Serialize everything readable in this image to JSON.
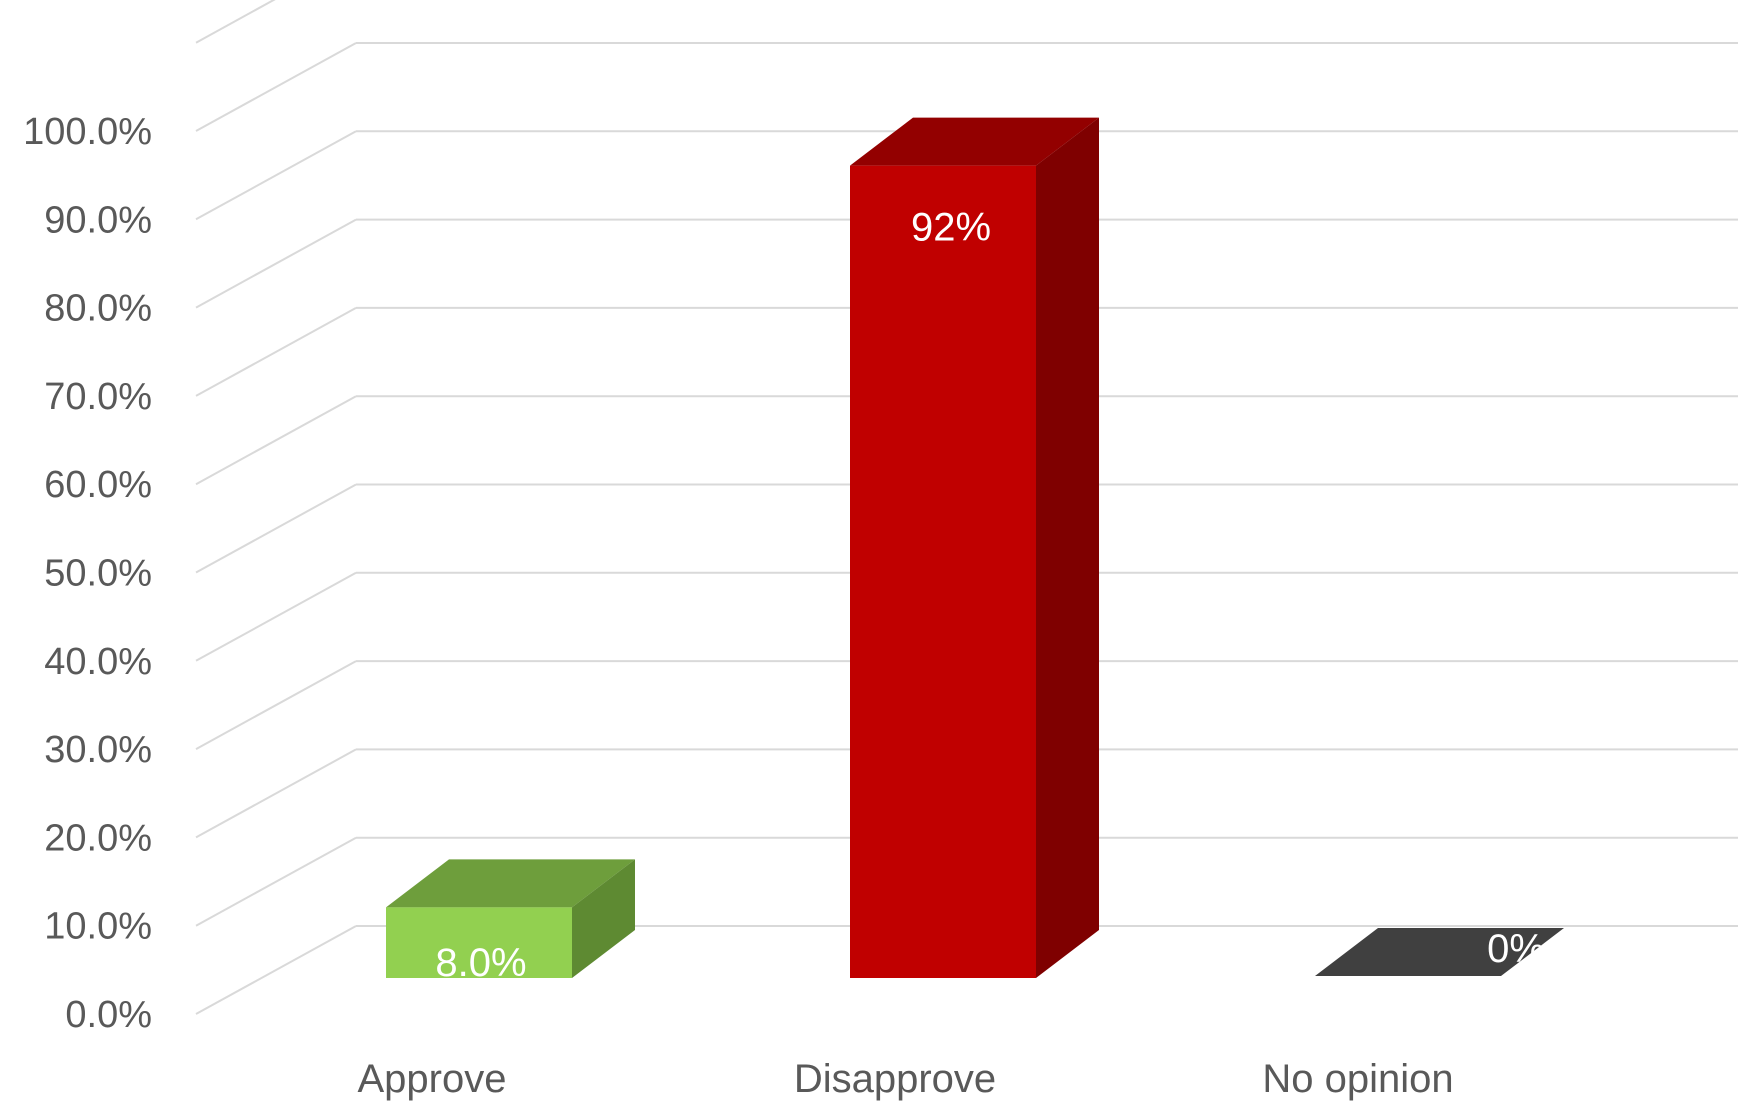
{
  "chart_data": {
    "type": "bar",
    "variant": "3d-column",
    "categories": [
      "Approve",
      "Disapprove",
      "No opinion"
    ],
    "values": [
      8.0,
      92.0,
      0.0
    ],
    "data_labels": [
      "8.0%",
      "92%",
      "0%"
    ],
    "y_ticks": [
      "0.0%",
      "10.0%",
      "20.0%",
      "30.0%",
      "40.0%",
      "50.0%",
      "60.0%",
      "70.0%",
      "80.0%",
      "90.0%",
      "100.0%"
    ],
    "ylim": [
      0,
      110
    ],
    "grid": true,
    "legend": "none",
    "colors": {
      "bars": [
        {
          "front": "#92d050",
          "top": "#6e9e3c",
          "side": "#5e8a32"
        },
        {
          "front": "#c00000",
          "top": "#930000",
          "side": "#7f0000"
        },
        {
          "front": "#404040",
          "top": "#404040",
          "side": "#303030"
        }
      ],
      "grid": "#d9d9d9",
      "text": "#595959"
    }
  }
}
